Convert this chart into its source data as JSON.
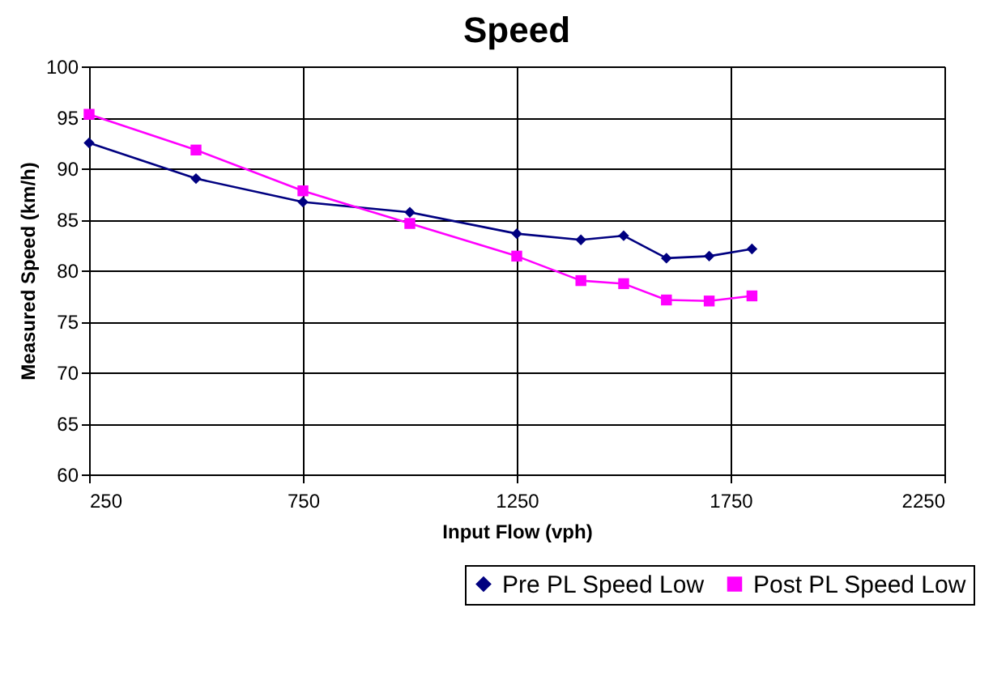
{
  "chart_data": {
    "type": "line",
    "title": "Speed",
    "xlabel": "Input Flow (vph)",
    "ylabel": "Measured Speed (km/h)",
    "x": [
      250,
      500,
      750,
      1000,
      1250,
      1400,
      1500,
      1600,
      1700,
      1800
    ],
    "series": [
      {
        "name": "Pre PL Speed Low",
        "color": "#000080",
        "marker": "diamond",
        "values": [
          92.5,
          89.0,
          86.7,
          85.7,
          83.6,
          83.0,
          83.4,
          81.2,
          81.4,
          82.1
        ]
      },
      {
        "name": "Post PL Speed Low",
        "color": "#ff00ff",
        "marker": "square",
        "values": [
          95.3,
          91.8,
          87.8,
          84.6,
          81.4,
          79.0,
          78.7,
          77.1,
          77.0,
          77.5
        ]
      }
    ],
    "xlim": [
      250,
      2250
    ],
    "xticks": [
      250,
      750,
      1250,
      1750,
      2250
    ],
    "ylim": [
      60,
      100
    ],
    "yticks": [
      60,
      65,
      70,
      75,
      80,
      85,
      90,
      95,
      100
    ],
    "grid": true,
    "legend": "bottom right",
    "line_style": "solid"
  }
}
